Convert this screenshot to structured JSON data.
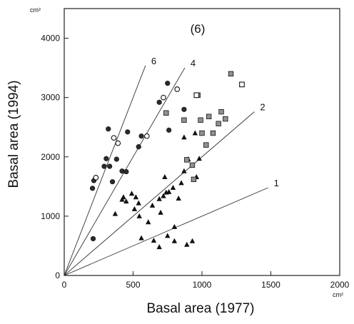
{
  "chart_data": {
    "type": "scatter",
    "title": "(6)",
    "xlabel": "Basal area (1977)",
    "ylabel": "Basal area (1994)",
    "x_unit": "cm²",
    "y_unit": "cm²",
    "xlim": [
      0,
      2000
    ],
    "ylim": [
      0,
      4500
    ],
    "xticks": [
      0,
      500,
      1000,
      1500,
      2000
    ],
    "yticks": [
      0,
      1000,
      2000,
      3000,
      4000
    ],
    "grid": false,
    "reference_lines": [
      {
        "label": "1",
        "slope": 1,
        "x_end": 1480
      },
      {
        "label": "2",
        "slope": 2,
        "x_end": 1380
      },
      {
        "label": "4",
        "slope": 4,
        "x_end": 875
      },
      {
        "label": "6",
        "slope": 6,
        "x_end": 590
      }
    ],
    "series": [
      {
        "marker": "filled-circle",
        "x": [
          210,
          205,
          215,
          290,
          305,
          320,
          330,
          350,
          360,
          380,
          420,
          450,
          460,
          540,
          560,
          760,
          870,
          690,
          750
        ],
        "y": [
          620,
          1470,
          1600,
          1840,
          1970,
          2470,
          1840,
          1580,
          2320,
          1960,
          1760,
          1750,
          2420,
          2170,
          2350,
          2450,
          2800,
          2920,
          3240
        ]
      },
      {
        "marker": "open-circle",
        "x": [
          230,
          360,
          390,
          600,
          720,
          820
        ],
        "y": [
          1650,
          2320,
          2230,
          2350,
          3000,
          3140
        ]
      },
      {
        "marker": "filled-triangle",
        "x": [
          370,
          420,
          450,
          490,
          510,
          520,
          540,
          545,
          560,
          610,
          640,
          650,
          690,
          690,
          700,
          720,
          730,
          750,
          760,
          790,
          800,
          830,
          850,
          870,
          890,
          900,
          930,
          960,
          980,
          430,
          740,
          800,
          950,
          870
        ],
        "y": [
          1040,
          1280,
          1250,
          1380,
          1120,
          1320,
          1220,
          1000,
          630,
          900,
          1180,
          590,
          480,
          1290,
          1060,
          1340,
          1660,
          670,
          1410,
          1480,
          580,
          1300,
          1560,
          1760,
          520,
          1960,
          580,
          1660,
          1970,
          1320,
          1400,
          820,
          2400,
          2330
        ]
      },
      {
        "marker": "hatched-square",
        "x": [
          740,
          870,
          890,
          930,
          940,
          970,
          990,
          1000,
          1030,
          1050,
          1080,
          1120,
          1140,
          1170,
          1210
        ],
        "y": [
          2740,
          2620,
          1950,
          1860,
          1620,
          3040,
          2620,
          2400,
          2200,
          2680,
          2400,
          2560,
          2760,
          2640,
          3400
        ]
      },
      {
        "marker": "open-square",
        "x": [
          960,
          1290
        ],
        "y": [
          3040,
          3220
        ]
      }
    ]
  }
}
